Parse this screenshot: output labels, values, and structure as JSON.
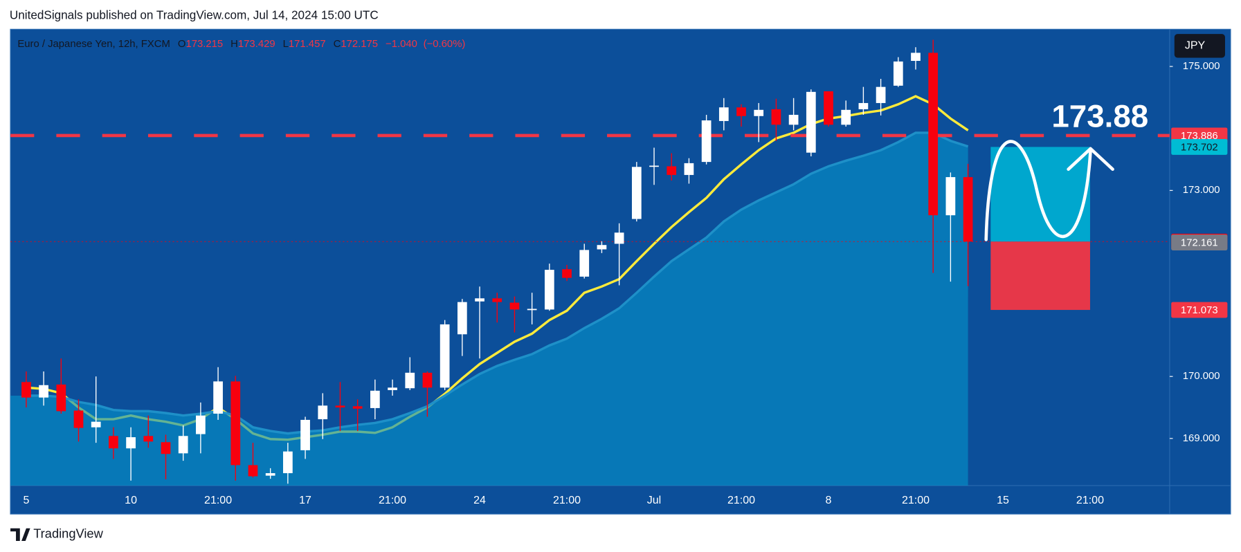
{
  "header": {
    "publisher": "UnitedSignals published on TradingView.com, Jul 14, 2024 15:00 UTC",
    "brand": "TradingView"
  },
  "chart_data": {
    "type": "candlestick",
    "symbol": "Euro / Japanese Yen, 12h, FXCM",
    "ohlc_labels": [
      "O",
      "H",
      "L",
      "C"
    ],
    "change": "−1.040",
    "change_pct": "(−0.60%)",
    "currency": "JPY",
    "annotation": "173.88",
    "categories": [
      "5",
      null,
      null,
      null,
      null,
      null,
      "10",
      null,
      null,
      null,
      null,
      "21:00",
      null,
      null,
      null,
      null,
      "17",
      null,
      null,
      null,
      null,
      "21:00",
      null,
      null,
      null,
      null,
      "24",
      null,
      null,
      null,
      null,
      "21:00",
      null,
      null,
      null,
      null,
      "Jul",
      null,
      null,
      null,
      null,
      "21:00",
      null,
      null,
      null,
      null,
      "8",
      null,
      null,
      null,
      null,
      "21:00",
      null,
      null,
      null,
      null,
      "15",
      null,
      null,
      null,
      null,
      "21:00"
    ],
    "open": [
      169.91,
      169.66,
      169.87,
      169.45,
      169.18,
      169.04,
      168.84,
      169.04,
      168.94,
      168.76,
      169.07,
      169.4,
      169.92,
      168.57,
      168.4,
      168.44,
      168.81,
      169.31,
      169.53,
      169.52,
      169.49,
      169.78,
      169.81,
      170.06,
      169.82,
      170.68,
      171.21,
      171.26,
      171.19,
      171.07,
      171.08,
      171.73,
      171.61,
      172.05,
      172.14,
      172.54,
      173.39,
      173.39,
      173.25,
      173.46,
      174.12,
      174.34,
      174.2,
      174.31,
      174.06,
      173.61,
      174.6,
      174.06,
      174.31,
      174.41,
      174.69,
      175.09,
      175.22,
      172.6,
      173.215,
      null,
      null,
      null,
      null,
      null,
      null,
      null
    ],
    "high": [
      170.08,
      170.08,
      170.29,
      169.63,
      170.0,
      169.18,
      169.18,
      169.37,
      169.06,
      169.21,
      169.58,
      170.15,
      170.01,
      168.93,
      168.52,
      168.93,
      169.35,
      169.73,
      169.91,
      169.63,
      169.95,
      169.95,
      170.31,
      170.08,
      170.91,
      171.25,
      171.45,
      171.35,
      171.29,
      171.35,
      171.82,
      171.8,
      172.14,
      172.18,
      172.47,
      173.46,
      173.69,
      173.6,
      173.52,
      174.22,
      174.49,
      174.39,
      174.41,
      174.48,
      174.49,
      174.63,
      174.6,
      174.45,
      174.67,
      174.8,
      175.15,
      175.31,
      175.43,
      173.29,
      173.429,
      null,
      null,
      null,
      null,
      null,
      null,
      null
    ],
    "low": [
      169.5,
      169.53,
      169.4,
      168.95,
      168.93,
      168.67,
      168.32,
      168.85,
      168.34,
      168.64,
      168.76,
      169.3,
      168.32,
      168.37,
      168.35,
      168.27,
      168.67,
      168.99,
      169.12,
      169.12,
      169.31,
      169.69,
      169.78,
      169.35,
      169.78,
      170.33,
      170.29,
      170.87,
      170.71,
      170.84,
      171.06,
      171.54,
      171.58,
      171.99,
      171.47,
      172.5,
      173.09,
      173.16,
      173.11,
      173.42,
      173.97,
      174.03,
      173.78,
      173.8,
      173.97,
      173.55,
      174.03,
      174.03,
      174.22,
      174.21,
      174.67,
      174.95,
      171.67,
      171.53,
      171.457,
      null,
      null,
      null,
      null,
      null,
      null,
      null
    ],
    "close": [
      169.66,
      169.86,
      169.44,
      169.17,
      169.27,
      168.84,
      169.02,
      168.95,
      168.75,
      169.04,
      169.37,
      169.92,
      168.57,
      168.39,
      168.44,
      168.79,
      169.3,
      169.53,
      169.5,
      169.48,
      169.77,
      169.82,
      170.06,
      169.82,
      170.84,
      171.2,
      171.26,
      171.2,
      171.08,
      171.09,
      171.72,
      171.59,
      172.04,
      172.12,
      172.32,
      173.38,
      173.4,
      173.25,
      173.44,
      174.13,
      174.34,
      174.2,
      174.3,
      174.06,
      174.22,
      174.59,
      174.06,
      174.3,
      174.41,
      174.67,
      175.08,
      175.22,
      172.6,
      173.215,
      172.175,
      null,
      null,
      null,
      null,
      null,
      null,
      null
    ],
    "up_color": "#ffffff",
    "down_color": "#f7000e",
    "series": [
      {
        "color": "#ffeb3b",
        "values": [
          169.82,
          169.8,
          169.73,
          169.5,
          169.31,
          169.31,
          169.37,
          169.31,
          169.27,
          169.21,
          169.31,
          169.5,
          169.31,
          169.08,
          168.99,
          168.98,
          169.02,
          169.06,
          169.11,
          169.11,
          169.09,
          169.18,
          169.35,
          169.5,
          169.72,
          169.97,
          170.2,
          170.38,
          170.56,
          170.69,
          170.91,
          171.06,
          171.35,
          171.45,
          171.57,
          171.86,
          172.14,
          172.41,
          172.65,
          172.88,
          173.18,
          173.42,
          173.65,
          173.84,
          173.93,
          174.07,
          174.16,
          174.2,
          174.25,
          174.29,
          174.39,
          174.52,
          174.39,
          174.16,
          173.97,
          null,
          null,
          null,
          null,
          null,
          null,
          null
        ]
      },
      {
        "color": "#1e90c8",
        "values": [
          169.69,
          169.69,
          169.67,
          169.59,
          169.54,
          169.46,
          169.44,
          169.44,
          169.41,
          169.37,
          169.4,
          169.44,
          169.37,
          169.18,
          169.12,
          169.08,
          169.11,
          169.13,
          169.18,
          169.22,
          169.25,
          169.31,
          169.41,
          169.52,
          169.69,
          169.87,
          170.04,
          170.17,
          170.27,
          170.36,
          170.5,
          170.61,
          170.78,
          170.93,
          171.1,
          171.35,
          171.61,
          171.86,
          172.05,
          172.24,
          172.5,
          172.69,
          172.84,
          172.97,
          173.1,
          173.27,
          173.39,
          173.48,
          173.56,
          173.65,
          173.78,
          173.93,
          173.93,
          173.8,
          173.71,
          null,
          null,
          null,
          null,
          null,
          null,
          null
        ]
      }
    ],
    "ylim": [
      168.24,
      175.6
    ],
    "yticks": [
      {
        "value": 169,
        "label": "169.000"
      },
      {
        "value": 170,
        "label": "170.000"
      },
      {
        "value": 173,
        "label": "173.000"
      },
      {
        "value": 175,
        "label": "175.000"
      }
    ],
    "price_tags": [
      {
        "value": 173.886,
        "color": "#f23645"
      },
      {
        "value": 173.702,
        "color": "#00bcd4"
      },
      {
        "value": 172.175,
        "color": "#f7000e"
      },
      {
        "value": 172.161,
        "color": "#787b86"
      },
      {
        "value": 171.073,
        "color": "#f23645"
      }
    ]
  }
}
